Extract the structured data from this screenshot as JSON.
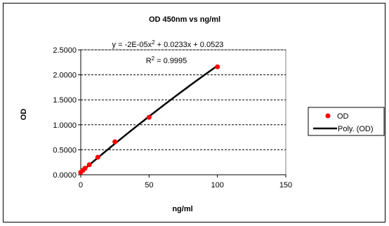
{
  "chart_data": {
    "type": "scatter",
    "title": "OD 450nm vs ng/ml",
    "xlabel": "ng/ml",
    "ylabel": "OD",
    "xlim": [
      0,
      150
    ],
    "ylim": [
      0,
      2.5
    ],
    "xticks": [
      "0",
      "50",
      "100",
      "150"
    ],
    "yticks": [
      "0.0000",
      "0.5000",
      "1.0000",
      "1.5000",
      "2.0000",
      "2.5000"
    ],
    "grid": "horizontal dashed",
    "legend_placement": "right",
    "series": [
      {
        "name": "OD",
        "marker": "circle",
        "color": "#ff0000",
        "x": [
          0,
          1.5625,
          3.125,
          6.25,
          12.5,
          25,
          50,
          100
        ],
        "y": [
          0.05,
          0.09,
          0.13,
          0.2,
          0.35,
          0.66,
          1.15,
          2.16
        ]
      }
    ],
    "trendline": {
      "name": "Poly. (OD)",
      "type": "polynomial",
      "order": 2,
      "coefficients": [
        -2e-05,
        0.0233,
        0.0523
      ],
      "color": "#000000"
    },
    "annotations": {
      "equation_lhs": "y = -2E-05x",
      "equation_exp": "2",
      "equation_rhs": " + 0.0233x + 0.0523",
      "r2_prefix": "R",
      "r2_exp": "2",
      "r2_value": " = 0.9995"
    }
  }
}
